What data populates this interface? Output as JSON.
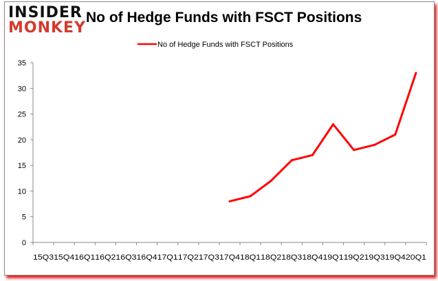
{
  "logo": {
    "line1": "INSIDER",
    "line2": "MONKEY"
  },
  "chart_data": {
    "type": "line",
    "title": "No of Hedge Funds with FSCT Positions",
    "xlabel": "",
    "ylabel": "",
    "categories": [
      "15Q3",
      "15Q4",
      "16Q1",
      "16Q2",
      "16Q3",
      "16Q4",
      "17Q1",
      "17Q2",
      "17Q3",
      "17Q4",
      "18Q1",
      "18Q2",
      "18Q3",
      "18Q4",
      "19Q1",
      "19Q2",
      "19Q3",
      "19Q4",
      "20Q1"
    ],
    "series": [
      {
        "name": "No of Hedge Funds with FSCT Positions",
        "color": "#ff0000",
        "values": [
          null,
          null,
          null,
          null,
          null,
          null,
          null,
          null,
          null,
          8,
          9,
          12,
          16,
          17,
          23,
          18,
          19,
          21,
          33
        ]
      }
    ],
    "ylim": [
      0,
      35
    ],
    "yticks": [
      0,
      5,
      10,
      15,
      20,
      25,
      30,
      35
    ],
    "grid": false,
    "legend": "top-center"
  }
}
